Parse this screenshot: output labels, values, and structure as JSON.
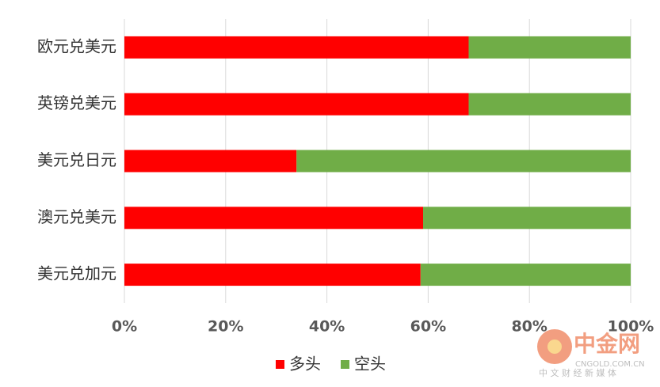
{
  "chart_data": {
    "type": "stacked-barh",
    "categories": [
      "欧元兑美元",
      "英镑兑美元",
      "美元兑日元",
      "澳元兑美元",
      "美元兑加元"
    ],
    "series": [
      {
        "name": "多头",
        "color": "#ff0000",
        "values": [
          68,
          68,
          34,
          59,
          58.5
        ]
      },
      {
        "name": "空头",
        "color": "#70ad47",
        "values": [
          32,
          32,
          66,
          41,
          41.5
        ]
      }
    ],
    "xlim": [
      0,
      100
    ],
    "xticks": [
      {
        "value": 0,
        "label": "0%"
      },
      {
        "value": 20,
        "label": "20%"
      },
      {
        "value": 40,
        "label": "40%"
      },
      {
        "value": 60,
        "label": "60%"
      },
      {
        "value": 80,
        "label": "80%"
      },
      {
        "value": 100,
        "label": "100%"
      }
    ],
    "grid": true,
    "legend": "bottom"
  },
  "watermark": {
    "name": "中金网",
    "url": "CNGOLD.COM.CN",
    "slogan": "中 文 财 经 新 媒 体"
  }
}
